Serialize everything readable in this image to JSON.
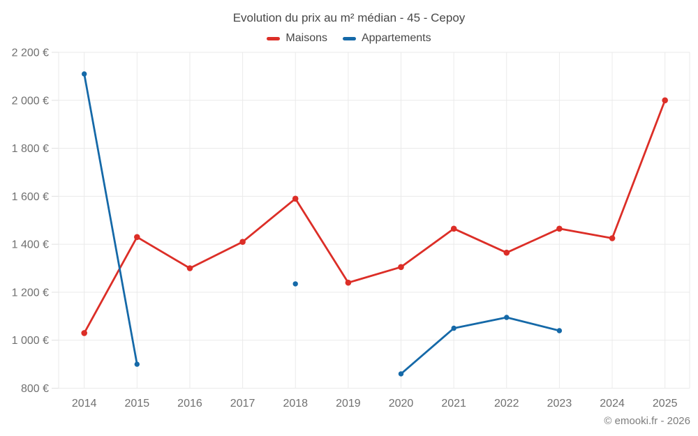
{
  "title": "Evolution du prix au m² médian - 45 - Cepoy",
  "legend": [
    {
      "label": "Maisons",
      "color": "#dc2e27"
    },
    {
      "label": "Appartements",
      "color": "#1569a8"
    }
  ],
  "watermark": "© emooki.fr - 2026",
  "colors": {
    "red": "#dc2e27",
    "blue": "#1569a8",
    "grid": "#eaeaea",
    "tick": "#e0e0e0",
    "axis_label": "#707070",
    "title_text": "#474747",
    "watermark": "#7d7d7d",
    "background": "#ffffff"
  },
  "chart_data": {
    "type": "line",
    "title": "Evolution du prix au m² médian - 45 - Cepoy",
    "x_labels": [
      "2014",
      "2015",
      "2016",
      "2017",
      "2018",
      "2019",
      "2020",
      "2021",
      "2022",
      "2023",
      "2024",
      "2025"
    ],
    "series": [
      {
        "name": "Maisons",
        "color": "#dc2e27",
        "values": [
          1030,
          1430,
          1300,
          1410,
          1590,
          1240,
          1305,
          1465,
          1365,
          1465,
          1425,
          2000
        ]
      },
      {
        "name": "Appartements",
        "color": "#1569a8",
        "values": [
          2110,
          900,
          null,
          null,
          1235,
          null,
          860,
          1050,
          1095,
          1040,
          null,
          null
        ]
      }
    ],
    "unit": "€",
    "ylim": [
      800,
      2200
    ],
    "y_ticks": [
      800,
      1000,
      1200,
      1400,
      1600,
      1800,
      2000,
      2200
    ],
    "y_tick_labels": [
      "800 €",
      "1 000 €",
      "1 200 €",
      "1 400 €",
      "1 600 €",
      "1 800 €",
      "2 000 €",
      "2 200 €"
    ],
    "xlabel": "",
    "ylabel": "",
    "grid": true,
    "legend_position": "top"
  }
}
